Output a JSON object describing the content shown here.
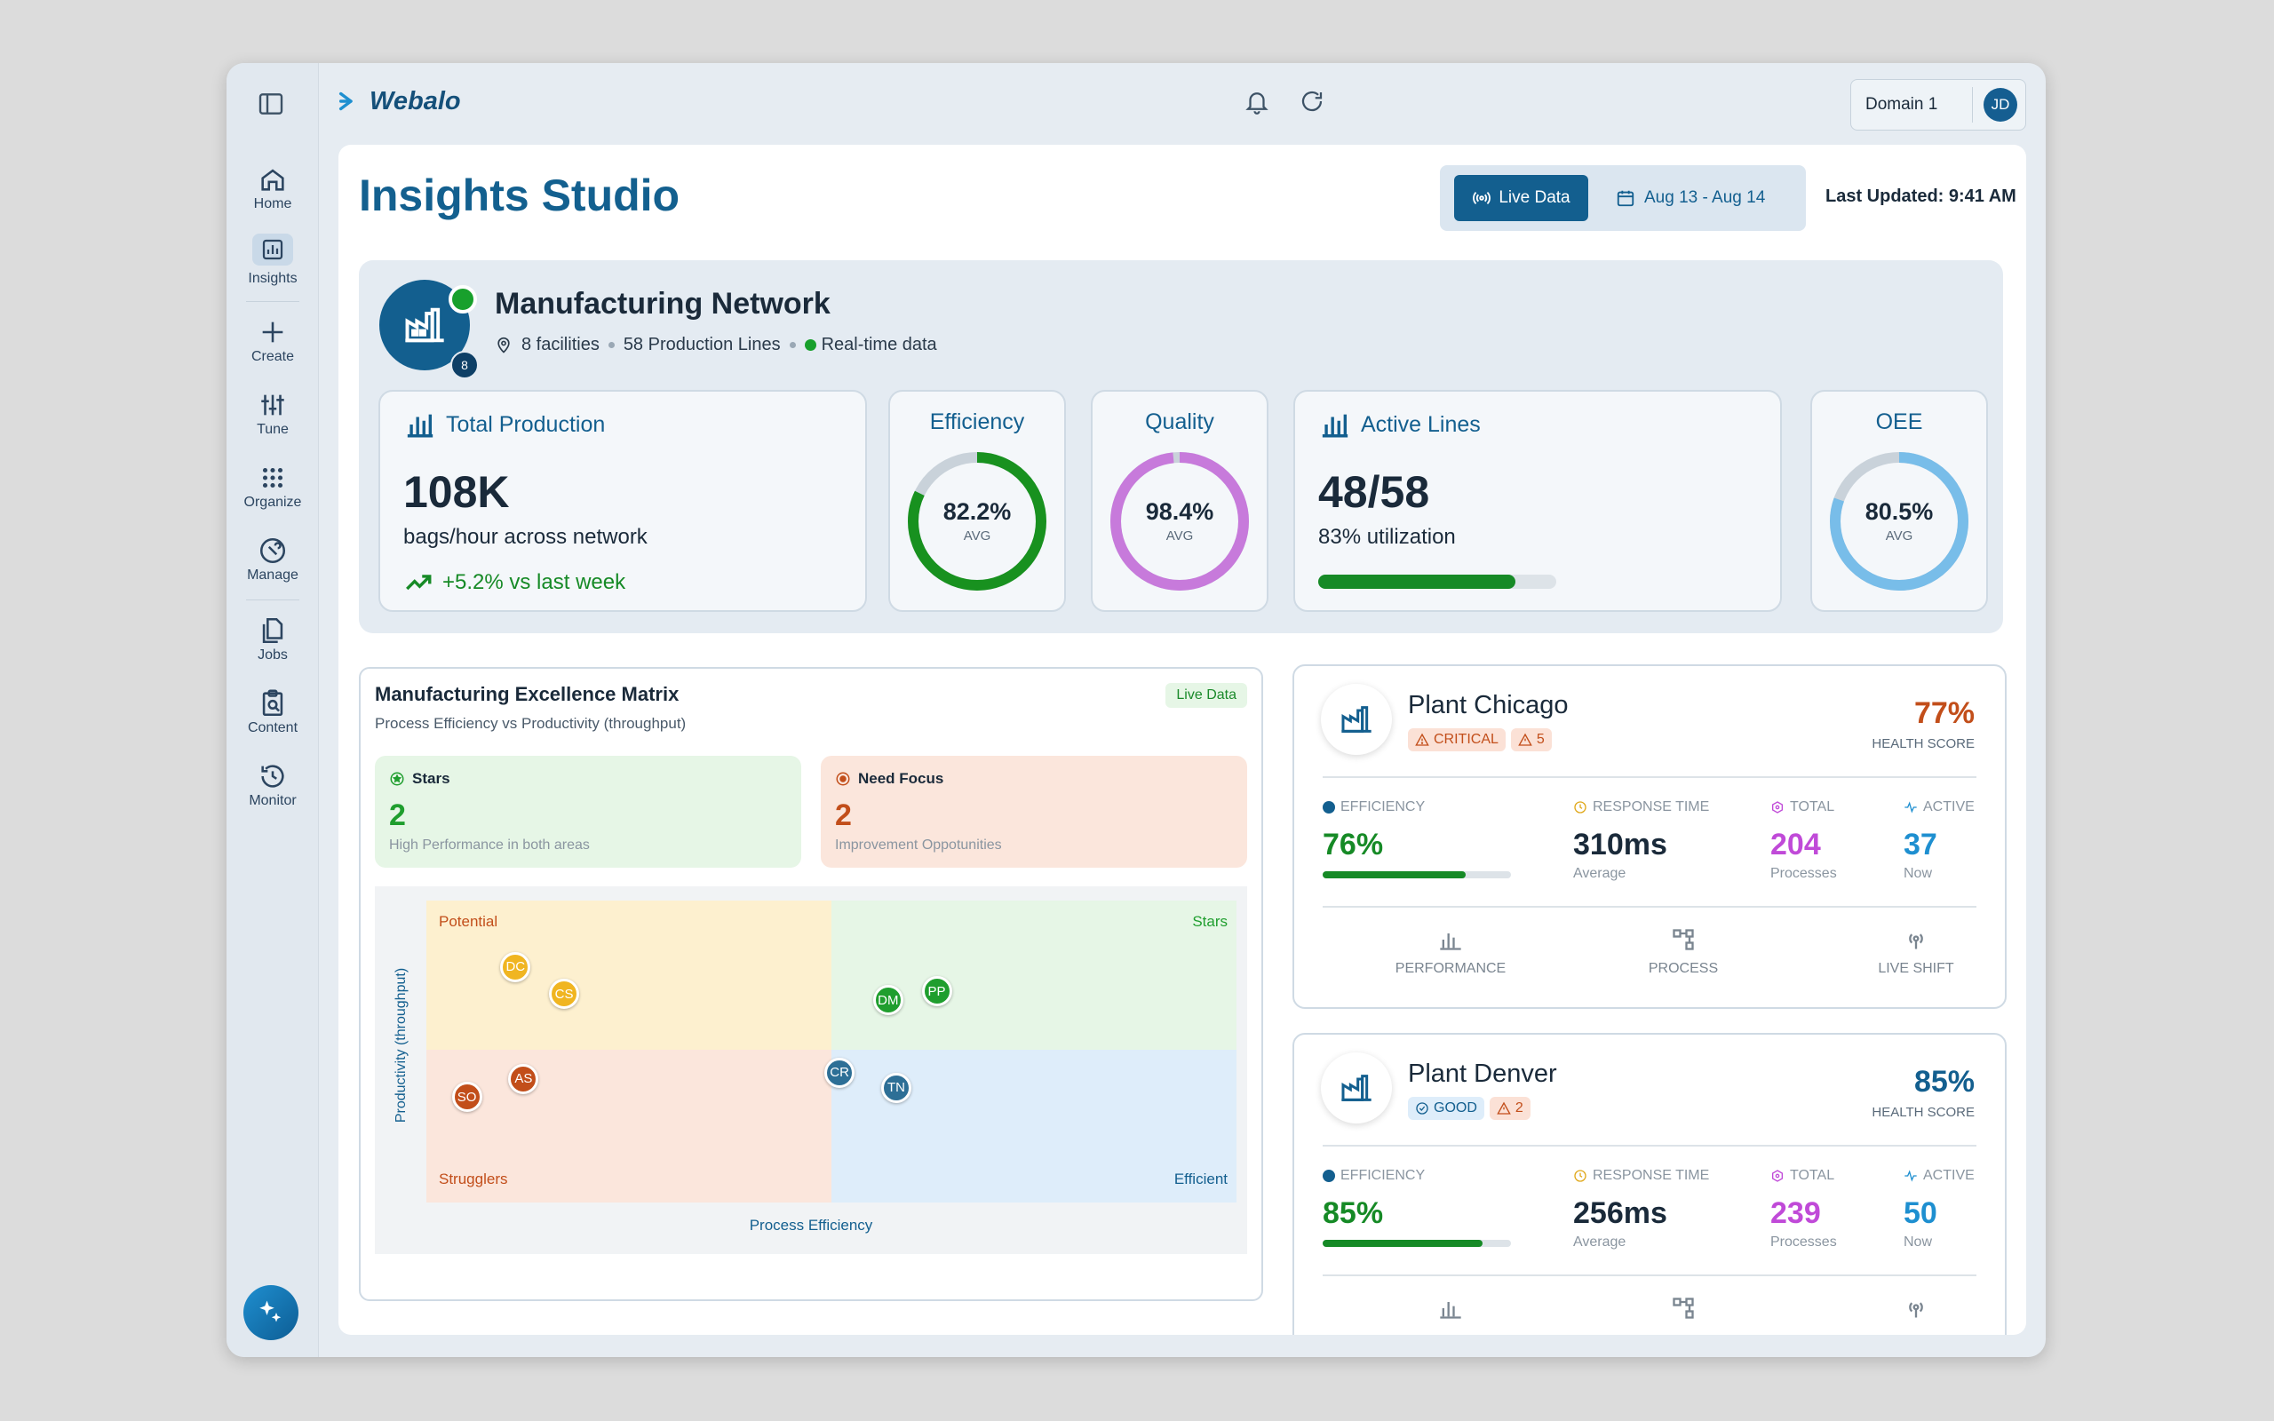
{
  "app": {
    "brand": "Webalo",
    "user_initials": "JD",
    "domain": "Domain 1"
  },
  "nav": [
    {
      "label": "Home",
      "icon": "home-icon"
    },
    {
      "label": "Insights",
      "icon": "chart-icon"
    },
    {
      "label": "Create",
      "icon": "plus-icon"
    },
    {
      "label": "Tune",
      "icon": "sliders-icon"
    },
    {
      "label": "Organize",
      "icon": "grid-icon"
    },
    {
      "label": "Manage",
      "icon": "wrench-icon"
    },
    {
      "label": "Jobs",
      "icon": "files-icon"
    },
    {
      "label": "Content",
      "icon": "clipboard-search-icon"
    },
    {
      "label": "Monitor",
      "icon": "history-icon"
    }
  ],
  "header": {
    "title": "Insights Studio",
    "live_label": "Live Data",
    "date_range": "Aug 13 - Aug 14",
    "last_updated": "Last Updated: 9:41 AM"
  },
  "network": {
    "title": "Manufacturing Network",
    "facilities": "8 facilities",
    "lines": "58 Production Lines",
    "realtime": "Real-time data",
    "badge_count": "8"
  },
  "kpis": {
    "production": {
      "title": "Total Production",
      "value": "108K",
      "unit": "bags/hour across network",
      "trend": "+5.2% vs last week"
    },
    "efficiency": {
      "title": "Efficiency",
      "value": "82.2%",
      "avg": "AVG",
      "fraction": 0.822,
      "color": "#18911f"
    },
    "quality": {
      "title": "Quality",
      "value": "98.4%",
      "avg": "AVG",
      "fraction": 0.984,
      "color": "#c77adb"
    },
    "active_lines": {
      "title": "Active Lines",
      "value": "48/58",
      "sub": "83% utilization",
      "fraction": 0.83
    },
    "oee": {
      "title": "OEE",
      "value": "80.5%",
      "avg": "AVG",
      "fraction": 0.805,
      "color": "#78bde9"
    }
  },
  "matrix": {
    "title": "Manufacturing Excellence Matrix",
    "subtitle": "Process Efficiency vs Productivity (throughput)",
    "live_label": "Live Data",
    "stars": {
      "title": "Stars",
      "count": "2",
      "desc": "High Performance in both areas"
    },
    "focus": {
      "title": "Need Focus",
      "count": "2",
      "desc": "Improvement Oppotunities"
    },
    "quadrants": {
      "potential": "Potential",
      "stars": "Stars",
      "strugglers": "Strugglers",
      "efficient": "Efficient"
    },
    "xlabel": "Process Efficiency",
    "ylabel": "Productivity (throughput)"
  },
  "chart_data": {
    "type": "scatter",
    "xlabel": "Process Efficiency",
    "ylabel": "Productivity (throughput)",
    "xlim": [
      0,
      100
    ],
    "ylim": [
      0,
      100
    ],
    "points": [
      {
        "label": "DC",
        "x": 11,
        "y": 78,
        "color": "#f0b521"
      },
      {
        "label": "CS",
        "x": 17,
        "y": 69,
        "color": "#f0b521"
      },
      {
        "label": "DM",
        "x": 57,
        "y": 67,
        "color": "#1f9e2e"
      },
      {
        "label": "PP",
        "x": 63,
        "y": 70,
        "color": "#1f9e2e"
      },
      {
        "label": "SO",
        "x": 5,
        "y": 35,
        "color": "#c24e1a"
      },
      {
        "label": "AS",
        "x": 12,
        "y": 41,
        "color": "#c24e1a"
      },
      {
        "label": "CR",
        "x": 51,
        "y": 43,
        "color": "#2d6f96"
      },
      {
        "label": "TN",
        "x": 58,
        "y": 38,
        "color": "#2d6f96"
      }
    ]
  },
  "plants": [
    {
      "name": "Plant Chicago",
      "status": "CRITICAL",
      "alerts": "5",
      "health": "77%",
      "health_label": "HEALTH SCORE",
      "health_color": "#c24e1a",
      "efficiency_label": "EFFICIENCY",
      "efficiency": "76%",
      "efficiency_fraction": 0.76,
      "response_label": "RESPONSE TIME",
      "response": "310ms",
      "response_sub": "Average",
      "total_label": "TOTAL",
      "total": "204",
      "total_sub": "Processes",
      "active_label": "ACTIVE",
      "active": "37",
      "active_sub": "Now",
      "actions": [
        "PERFORMANCE",
        "PROCESS",
        "LIVE SHIFT"
      ]
    },
    {
      "name": "Plant Denver",
      "status": "GOOD",
      "alerts": "2",
      "health": "85%",
      "health_label": "HEALTH SCORE",
      "health_color": "#135f8f",
      "efficiency_label": "EFFICIENCY",
      "efficiency": "85%",
      "efficiency_fraction": 0.85,
      "response_label": "RESPONSE TIME",
      "response": "256ms",
      "response_sub": "Average",
      "total_label": "TOTAL",
      "total": "239",
      "total_sub": "Processes",
      "active_label": "ACTIVE",
      "active": "50",
      "active_sub": "Now"
    }
  ]
}
